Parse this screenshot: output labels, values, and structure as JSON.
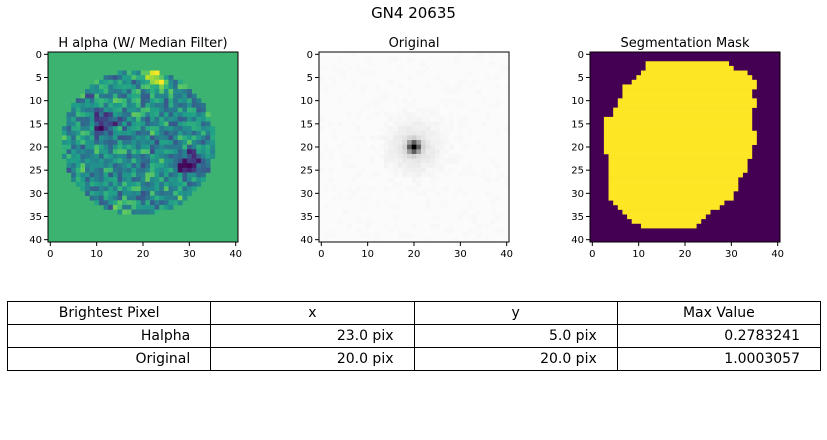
{
  "figure": {
    "title": "GN4 20635"
  },
  "chart_data": [
    {
      "type": "heatmap",
      "title": "H alpha (W/ Median Filter)",
      "colormap": "viridis",
      "background_color": "#3cb371",
      "x_ticks": [
        0,
        10,
        20,
        30,
        40
      ],
      "y_ticks": [
        0,
        5,
        10,
        15,
        20,
        25,
        30,
        35,
        40
      ],
      "xlim": [
        -0.5,
        40.5
      ],
      "ylim": [
        40.5,
        -0.5
      ],
      "grid_size": [
        41,
        41
      ],
      "aperture": {
        "center": [
          19,
          19
        ],
        "radius": 16.5
      },
      "features": [
        {
          "x": 23,
          "y": 5,
          "level": "max"
        },
        {
          "x": 30,
          "y": 24,
          "level": "min"
        },
        {
          "x": 12,
          "y": 15,
          "level": "low"
        }
      ]
    },
    {
      "type": "heatmap",
      "title": "Original",
      "colormap": "gray_r",
      "x_ticks": [
        0,
        10,
        20,
        30,
        40
      ],
      "y_ticks": [
        0,
        5,
        10,
        15,
        20,
        25,
        30,
        35,
        40
      ],
      "xlim": [
        -0.5,
        40.5
      ],
      "ylim": [
        40.5,
        -0.5
      ],
      "grid_size": [
        41,
        41
      ],
      "peak": {
        "x": 20,
        "y": 20
      }
    },
    {
      "type": "heatmap",
      "title": "Segmentation Mask",
      "colormap": "viridis",
      "mask_color": "#fde725",
      "background_color": "#440154",
      "x_ticks": [
        0,
        10,
        20,
        30,
        40
      ],
      "y_ticks": [
        0,
        5,
        10,
        15,
        20,
        25,
        30,
        35,
        40
      ],
      "xlim": [
        -0.5,
        40.5
      ],
      "ylim": [
        40.5,
        -0.5
      ],
      "grid_size": [
        41,
        41
      ],
      "mask_rows": [
        [
          2,
          12,
          29
        ],
        [
          3,
          12,
          30
        ],
        [
          4,
          11,
          33
        ],
        [
          5,
          10,
          34
        ],
        [
          6,
          9,
          35
        ],
        [
          7,
          7,
          35
        ],
        [
          8,
          7,
          34
        ],
        [
          9,
          7,
          34
        ],
        [
          10,
          6,
          35
        ],
        [
          11,
          6,
          35
        ],
        [
          12,
          5,
          34
        ],
        [
          13,
          5,
          34
        ],
        [
          14,
          3,
          34
        ],
        [
          15,
          3,
          34
        ],
        [
          16,
          3,
          34
        ],
        [
          17,
          3,
          35
        ],
        [
          18,
          3,
          35
        ],
        [
          19,
          3,
          35
        ],
        [
          20,
          3,
          34
        ],
        [
          21,
          3,
          34
        ],
        [
          22,
          4,
          34
        ],
        [
          23,
          4,
          33
        ],
        [
          24,
          4,
          33
        ],
        [
          25,
          4,
          33
        ],
        [
          26,
          4,
          32
        ],
        [
          27,
          4,
          31
        ],
        [
          28,
          4,
          31
        ],
        [
          29,
          4,
          31
        ],
        [
          30,
          4,
          30
        ],
        [
          31,
          4,
          30
        ],
        [
          32,
          5,
          28
        ],
        [
          33,
          6,
          27
        ],
        [
          34,
          7,
          25
        ],
        [
          35,
          8,
          24
        ],
        [
          36,
          9,
          23
        ],
        [
          37,
          11,
          22
        ]
      ]
    }
  ],
  "table": {
    "header": [
      "Brightest Pixel",
      "x",
      "y",
      "Max Value"
    ],
    "rows": [
      [
        "Halpha",
        "23.0 pix",
        "5.0 pix",
        "0.2783241"
      ],
      [
        "Original",
        "20.0 pix",
        "20.0 pix",
        "1.0003057"
      ]
    ]
  }
}
